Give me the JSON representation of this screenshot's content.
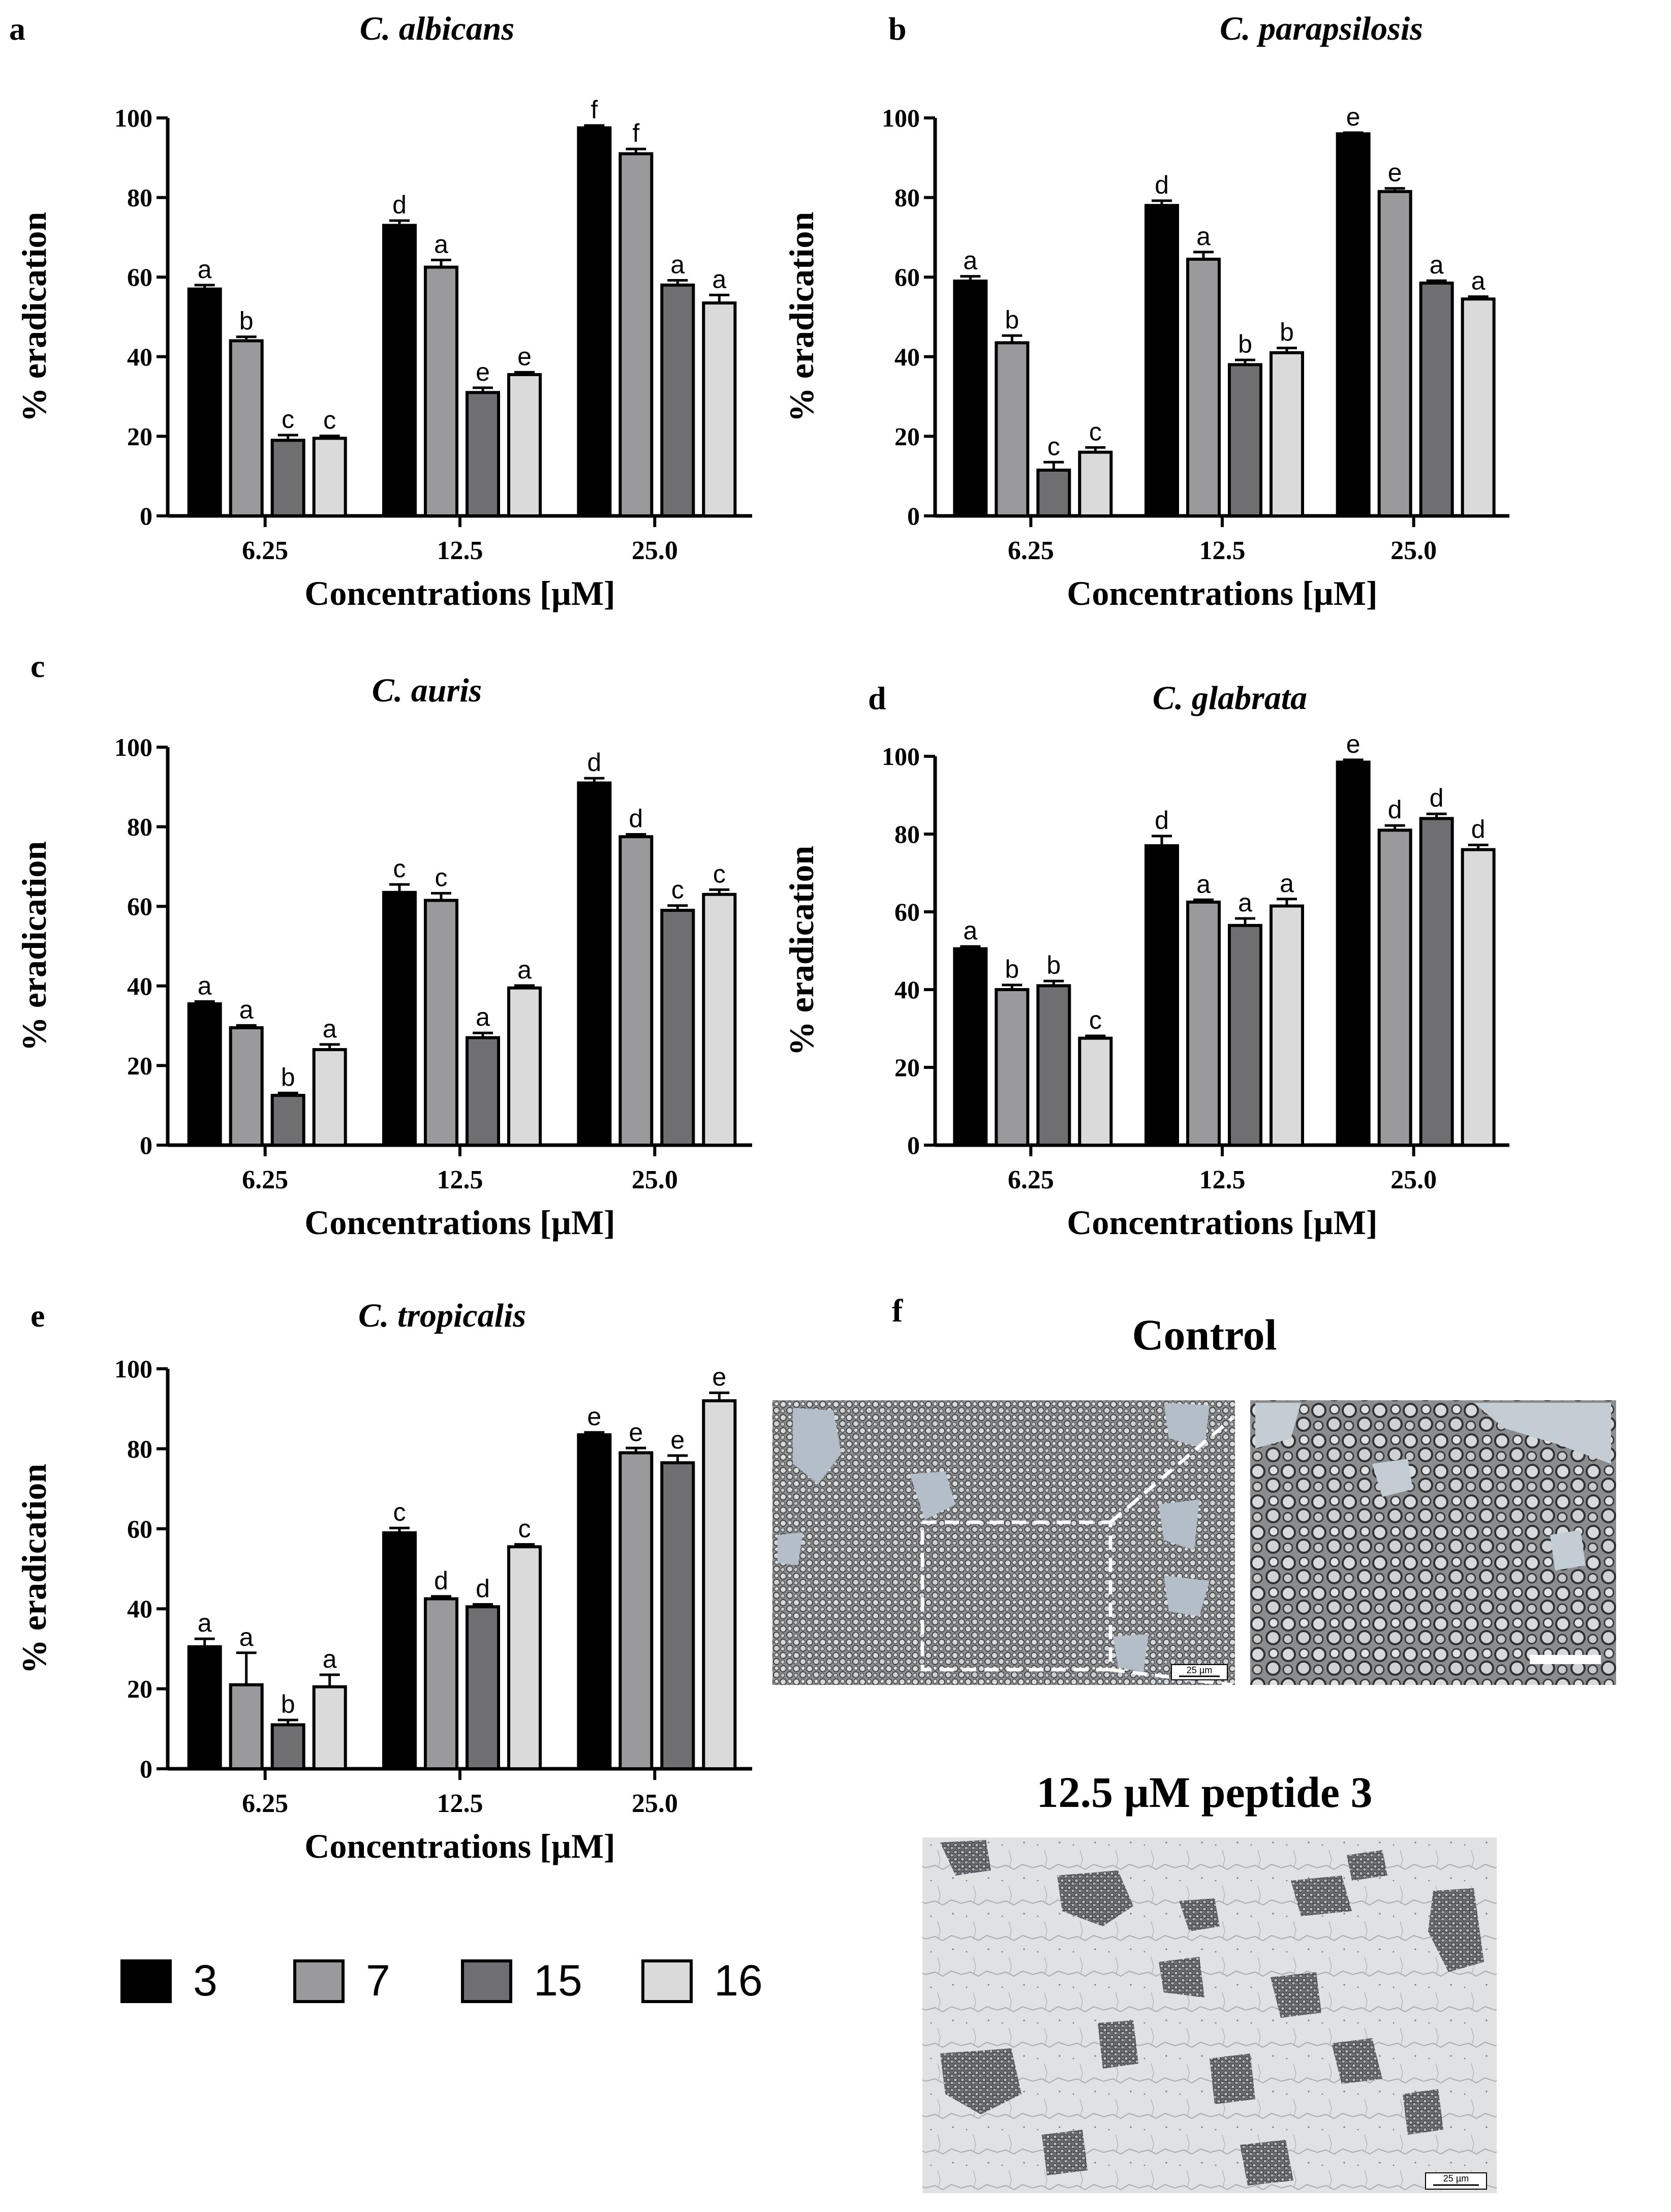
{
  "figure": {
    "legend": [
      {
        "label": "3",
        "color": "#000000"
      },
      {
        "label": "7",
        "color": "#9a9a9c"
      },
      {
        "label": "15",
        "color": "#6f6f71"
      },
      {
        "label": "16",
        "color": "#dadadb"
      }
    ]
  },
  "panel_f": {
    "letter": "f",
    "title_control": "Control",
    "title_treated": "12.5 µM peptide 3",
    "scale_label": "25 µm"
  },
  "chart_data": [
    {
      "panel": "a",
      "type": "bar",
      "title": "C. albicans",
      "xlabel": "Concentrations [µM]",
      "ylabel": "% eradication",
      "ylim": [
        0,
        100
      ],
      "yticks": [
        0,
        20,
        40,
        60,
        80,
        100
      ],
      "categories": [
        "6.25",
        "12.5",
        "25.0"
      ],
      "series": [
        {
          "name": "3",
          "values": [
            57,
            73,
            97.5
          ],
          "errors": [
            1.0,
            1.2,
            0.6
          ],
          "letters": [
            "a",
            "d",
            "f"
          ]
        },
        {
          "name": "7",
          "values": [
            44,
            62.5,
            91
          ],
          "errors": [
            1.0,
            1.8,
            1.2
          ],
          "letters": [
            "b",
            "a",
            "f"
          ]
        },
        {
          "name": "15",
          "values": [
            19,
            31,
            58
          ],
          "errors": [
            1.3,
            1.2,
            1.2
          ],
          "letters": [
            "c",
            "e",
            "a"
          ]
        },
        {
          "name": "16",
          "values": [
            19.5,
            35.5,
            53.5
          ],
          "errors": [
            0.6,
            0.6,
            2.0
          ],
          "letters": [
            "c",
            "e",
            "a"
          ]
        }
      ]
    },
    {
      "panel": "b",
      "type": "bar",
      "title": "C. parapsilosis",
      "xlabel": "Concentrations [µM]",
      "ylabel": "% eradication",
      "ylim": [
        0,
        100
      ],
      "yticks": [
        0,
        20,
        40,
        60,
        80,
        100
      ],
      "categories": [
        "6.25",
        "12.5",
        "25.0"
      ],
      "series": [
        {
          "name": "3",
          "values": [
            59,
            78,
            96
          ],
          "errors": [
            1.2,
            1.2,
            0.3
          ],
          "letters": [
            "a",
            "d",
            "e"
          ]
        },
        {
          "name": "7",
          "values": [
            43.5,
            64.5,
            81.5
          ],
          "errors": [
            1.8,
            1.8,
            0.8
          ],
          "letters": [
            "b",
            "a",
            "e"
          ]
        },
        {
          "name": "15",
          "values": [
            11.5,
            38,
            58.5
          ],
          "errors": [
            2.0,
            1.2,
            0.6
          ],
          "letters": [
            "c",
            "b",
            "a"
          ]
        },
        {
          "name": "16",
          "values": [
            16,
            41,
            54.5
          ],
          "errors": [
            1.2,
            1.2,
            0.6
          ],
          "letters": [
            "c",
            "b",
            "a"
          ]
        }
      ]
    },
    {
      "panel": "c",
      "type": "bar",
      "title": "C. auris",
      "xlabel": "Concentrations [µM]",
      "ylabel": "% eradication",
      "ylim": [
        0,
        100
      ],
      "yticks": [
        0,
        20,
        40,
        60,
        80,
        100
      ],
      "categories": [
        "6.25",
        "12.5",
        "25.0"
      ],
      "series": [
        {
          "name": "3",
          "values": [
            35.5,
            63.5,
            91
          ],
          "errors": [
            0.6,
            2.0,
            1.2
          ],
          "letters": [
            "a",
            "c",
            "d"
          ]
        },
        {
          "name": "7",
          "values": [
            29.5,
            61.5,
            77.5
          ],
          "errors": [
            0.6,
            1.8,
            0.6
          ],
          "letters": [
            "a",
            "c",
            "d"
          ]
        },
        {
          "name": "15",
          "values": [
            12.5,
            27,
            59
          ],
          "errors": [
            0.6,
            1.2,
            1.2
          ],
          "letters": [
            "b",
            "a",
            "c"
          ]
        },
        {
          "name": "16",
          "values": [
            24,
            39.5,
            63
          ],
          "errors": [
            1.3,
            0.6,
            1.2
          ],
          "letters": [
            "a",
            "a",
            "c"
          ]
        }
      ]
    },
    {
      "panel": "d",
      "type": "bar",
      "title": "C. glabrata",
      "xlabel": "Concentrations [µM]",
      "ylabel": "% eradication",
      "ylim": [
        0,
        100
      ],
      "yticks": [
        0,
        20,
        40,
        60,
        80,
        100
      ],
      "categories": [
        "6.25",
        "12.5",
        "25.0"
      ],
      "series": [
        {
          "name": "3",
          "values": [
            50.5,
            77,
            98.5
          ],
          "errors": [
            0.6,
            2.5,
            0.6
          ],
          "letters": [
            "a",
            "d",
            "e"
          ]
        },
        {
          "name": "7",
          "values": [
            40,
            62.5,
            81
          ],
          "errors": [
            1.2,
            0.6,
            1.2
          ],
          "letters": [
            "b",
            "a",
            "d"
          ]
        },
        {
          "name": "15",
          "values": [
            41,
            56.5,
            84
          ],
          "errors": [
            1.2,
            1.8,
            1.2
          ],
          "letters": [
            "b",
            "a",
            "d"
          ]
        },
        {
          "name": "16",
          "values": [
            27.5,
            61.5,
            76
          ],
          "errors": [
            0.6,
            1.8,
            1.2
          ],
          "letters": [
            "c",
            "a",
            "d"
          ]
        }
      ]
    },
    {
      "panel": "e",
      "type": "bar",
      "title": "C. tropicalis",
      "xlabel": "Concentrations [µM]",
      "ylabel": "% eradication",
      "ylim": [
        0,
        100
      ],
      "yticks": [
        0,
        20,
        40,
        60,
        80,
        100
      ],
      "categories": [
        "6.25",
        "12.5",
        "25.0"
      ],
      "series": [
        {
          "name": "3",
          "values": [
            30.5,
            59,
            83.5
          ],
          "errors": [
            2.0,
            1.2,
            0.6
          ],
          "letters": [
            "a",
            "c",
            "e"
          ]
        },
        {
          "name": "7",
          "values": [
            21,
            42.5,
            79
          ],
          "errors": [
            8.0,
            0.6,
            1.2
          ],
          "letters": [
            "a",
            "d",
            "e"
          ]
        },
        {
          "name": "15",
          "values": [
            11,
            40.5,
            76.5
          ],
          "errors": [
            1.2,
            0.6,
            1.8
          ],
          "letters": [
            "b",
            "d",
            "e"
          ]
        },
        {
          "name": "16",
          "values": [
            20.5,
            55.5,
            92
          ],
          "errors": [
            3.0,
            0.6,
            2.0
          ],
          "letters": [
            "a",
            "c",
            "e"
          ]
        }
      ]
    }
  ]
}
